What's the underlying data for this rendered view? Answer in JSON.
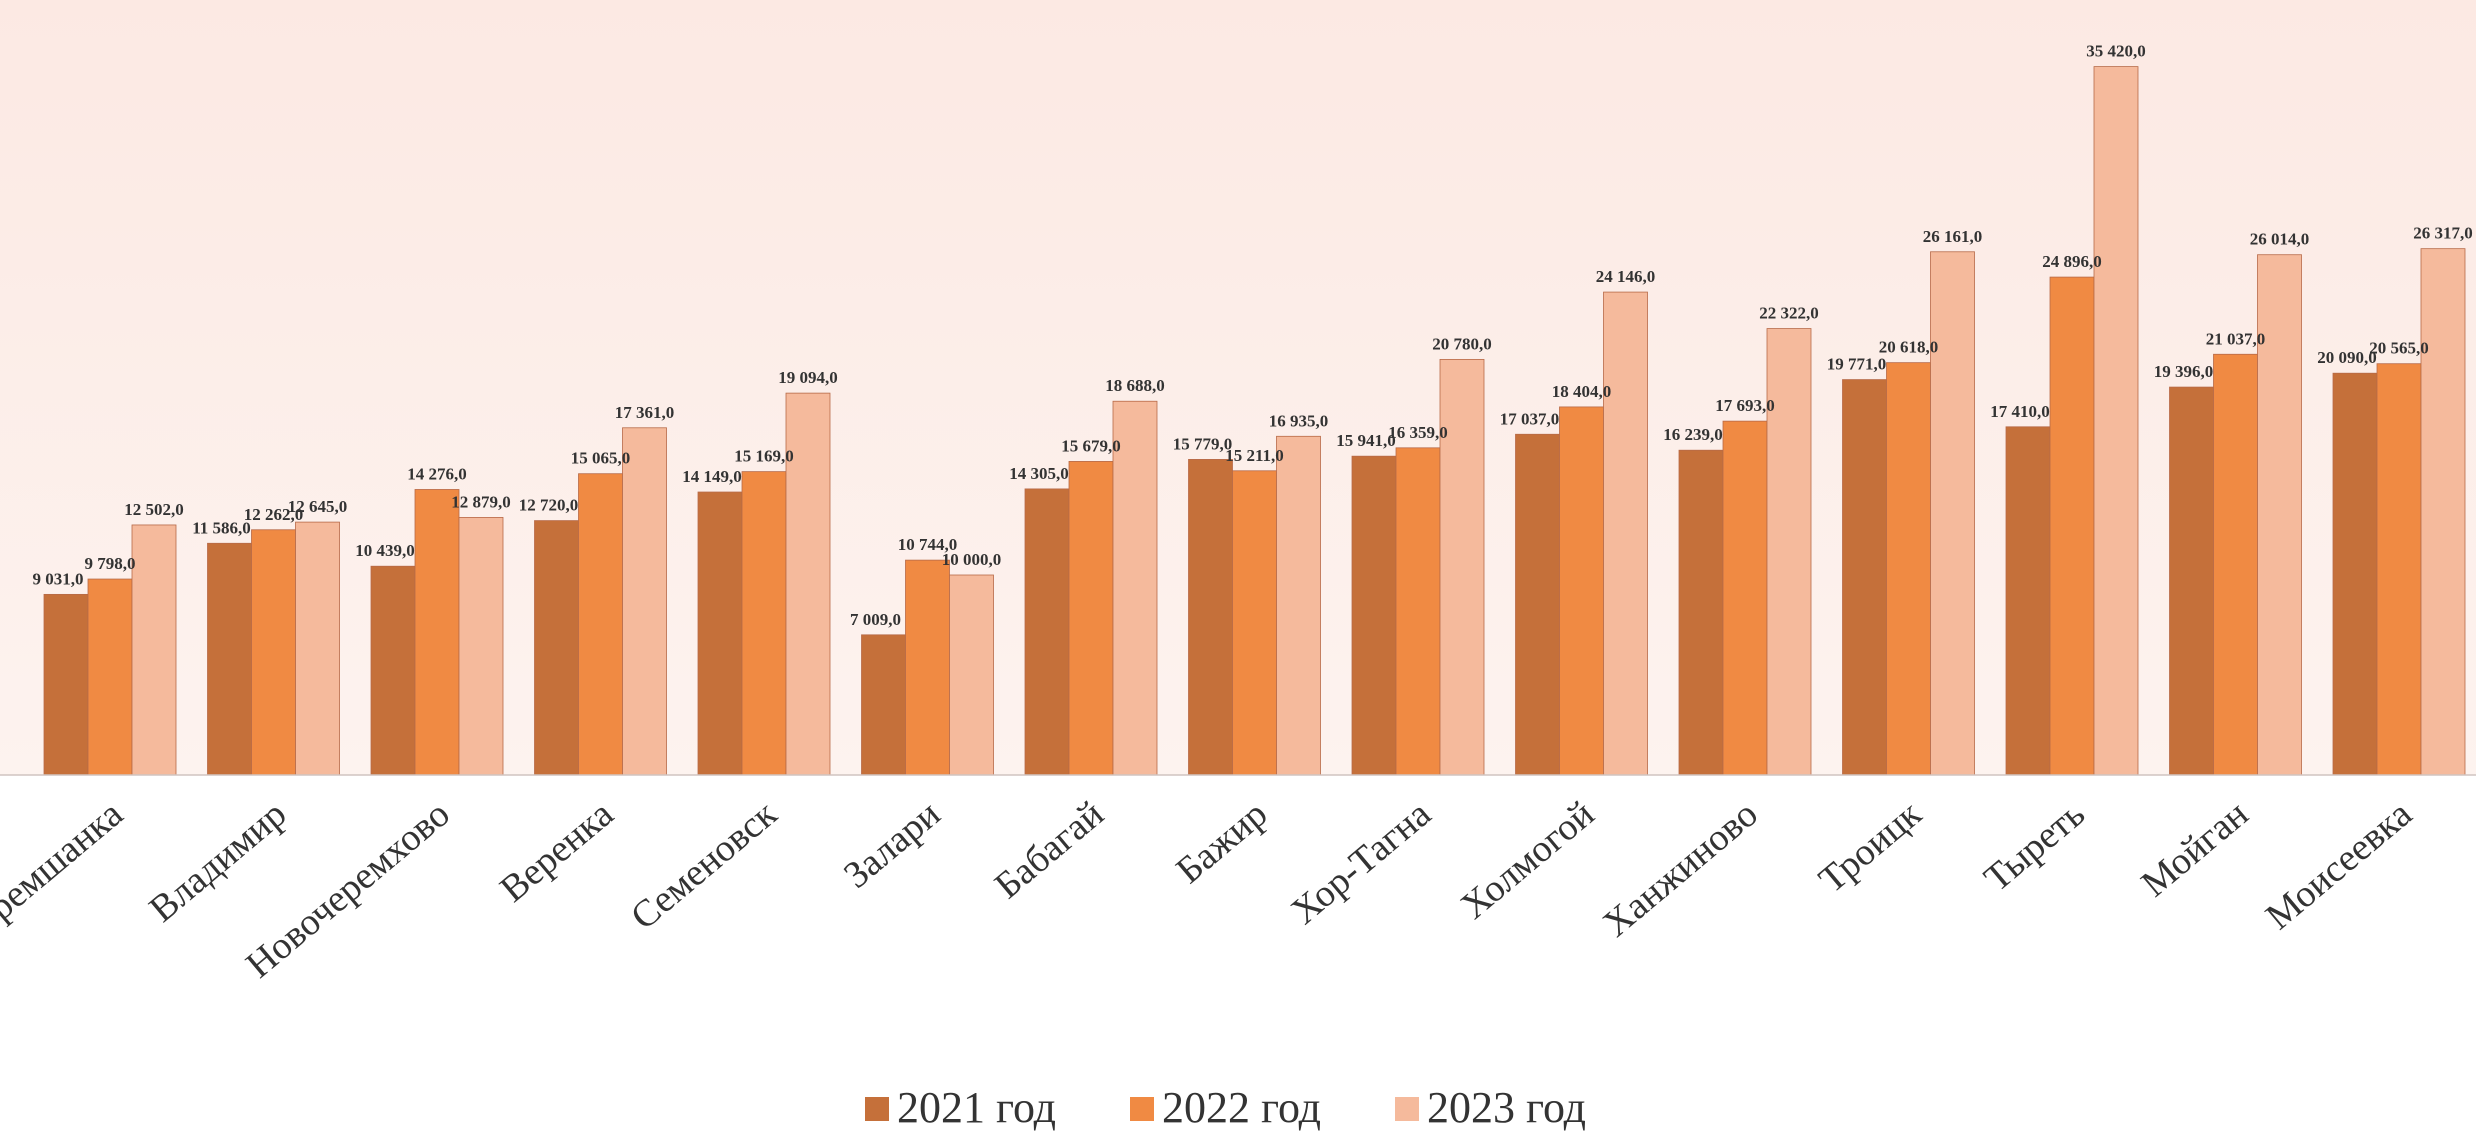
{
  "chart_data": {
    "type": "bar",
    "categories": [
      "Черемшанка",
      "Владимир",
      "Новочеремхово",
      "Веренка",
      "Семеновск",
      "Залари",
      "Бабагай",
      "Бажир",
      "Хор-Тагна",
      "Холмогой",
      "Ханжиново",
      "Троицк",
      "Тыреть",
      "Мойган",
      "Моисеевка"
    ],
    "series": [
      {
        "name": "2021 год",
        "color": "#C5703A",
        "values": [
          9031.0,
          11586.0,
          10439.0,
          12720.0,
          14149.0,
          7009.0,
          14305.0,
          15779.0,
          15941.0,
          17037.0,
          16239.0,
          19771.0,
          17410.0,
          19396.0,
          20090.0
        ],
        "labels": [
          "9 031,0",
          "11 586,0",
          "10 439,0",
          "12 720,0",
          "14 149,0",
          "7 009,0",
          "14 305,0",
          "15 779,0",
          "15 941,0",
          "17 037,0",
          "16 239,0",
          "19 771,0",
          "17 410,0",
          "19 396,0",
          "20 090,0"
        ]
      },
      {
        "name": "2022 год",
        "color": "#F08A43",
        "values": [
          9798.0,
          12262.0,
          14276.0,
          15065.0,
          15169.0,
          10744.0,
          15679.0,
          15211.0,
          16359.0,
          18404.0,
          17693.0,
          20618.0,
          24896.0,
          21037.0,
          20565.0
        ],
        "labels": [
          "9 798,0",
          "12 262,0",
          "14 276,0",
          "15 065,0",
          "15 169,0",
          "10 744,0",
          "15 679,0",
          "15 211,0",
          "16 359,0",
          "18 404,0",
          "17 693,0",
          "20 618,0",
          "24 896,0",
          "21 037,0",
          "20 565,0"
        ]
      },
      {
        "name": "2023 год",
        "color": "#F5BA9C",
        "values": [
          12502.0,
          12645.0,
          12879.0,
          17361.0,
          19094.0,
          10000.0,
          18688.0,
          16935.0,
          20780.0,
          24146.0,
          22322.0,
          26161.0,
          35420.0,
          26014.0,
          26317.0
        ],
        "labels": [
          "12 502,0",
          "12 645,0",
          "12 879,0",
          "17 361,0",
          "19 094,0",
          "10 000,0",
          "18 688,0",
          "16 935,0",
          "20 780,0",
          "24 146,0",
          "22 322,0",
          "26 161,0",
          "35 420,0",
          "26 014,0",
          "26 317,0"
        ]
      }
    ],
    "ylim": [
      0,
      40000
    ],
    "legend": "bottom-center",
    "grid": false,
    "background": "#FDEDE8"
  }
}
